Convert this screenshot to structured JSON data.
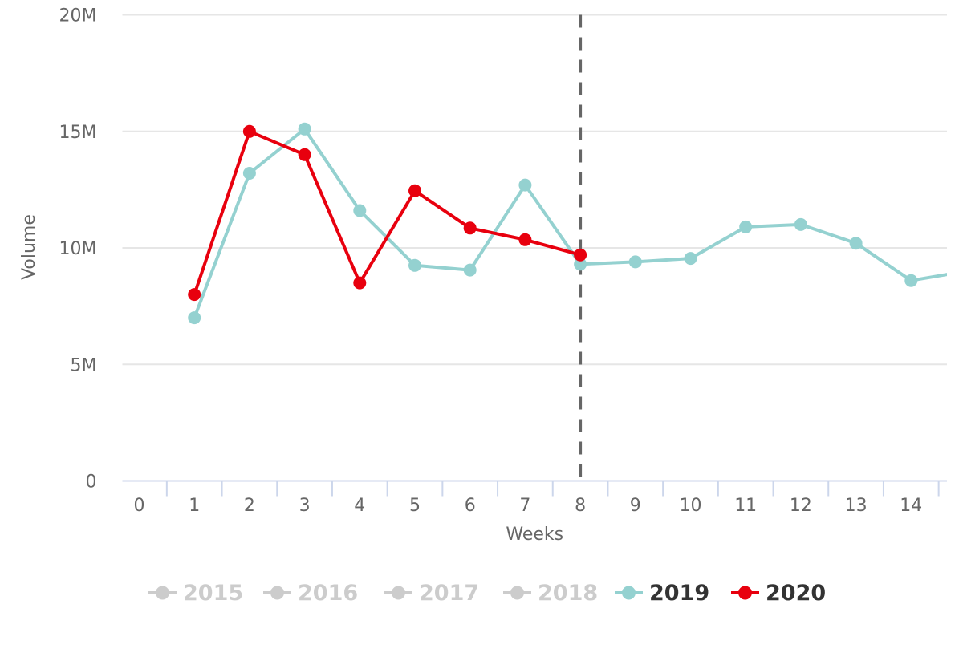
{
  "chart_data": {
    "type": "line",
    "title": "",
    "xlabel": "Weeks",
    "ylabel": "Volume",
    "x_tick_labels": [
      "0",
      "1",
      "2",
      "3",
      "4",
      "5",
      "6",
      "7",
      "8",
      "9",
      "10",
      "11",
      "12",
      "13",
      "14"
    ],
    "y_tick_labels": [
      "0",
      "5M",
      "10M",
      "15M",
      "20M"
    ],
    "y_tick_values": [
      0,
      5000000,
      10000000,
      15000000,
      20000000
    ],
    "ylim": [
      0,
      20000000
    ],
    "xlim": [
      -0.31,
      14.66
    ],
    "grid": "horizontal",
    "legend_position": "bottom",
    "plot_line": {
      "x": 8,
      "style": "dashed",
      "color": "#666666"
    },
    "series": [
      {
        "name": "2015",
        "visible": false,
        "color": "#cccccc",
        "x": [],
        "values": []
      },
      {
        "name": "2016",
        "visible": false,
        "color": "#cccccc",
        "x": [],
        "values": []
      },
      {
        "name": "2017",
        "visible": false,
        "color": "#cccccc",
        "x": [],
        "values": []
      },
      {
        "name": "2018",
        "visible": false,
        "color": "#cccccc",
        "x": [],
        "values": []
      },
      {
        "name": "2019",
        "visible": true,
        "color": "#94d1d0",
        "x": [
          1,
          2,
          3,
          4,
          5,
          6,
          7,
          8,
          9,
          10,
          11,
          12,
          13,
          14,
          15
        ],
        "values": [
          7000000,
          13200000,
          15100000,
          11600000,
          9250000,
          9050000,
          12700000,
          9300000,
          9400000,
          9550000,
          10900000,
          11000000,
          10200000,
          8600000,
          9000000
        ]
      },
      {
        "name": "2020",
        "visible": true,
        "color": "#e8000e",
        "x": [
          1,
          2,
          3,
          4,
          5,
          6,
          7,
          8
        ],
        "values": [
          8000000,
          15000000,
          14000000,
          8500000,
          12450000,
          10850000,
          10350000,
          9700000
        ]
      }
    ],
    "styles": {
      "background": "#ffffff",
      "grid_color": "#e6e6e6",
      "axis_line_color": "#ccd6eb",
      "tick_color": "#ccd6eb",
      "label_color": "#666666",
      "axis_title_color": "#666666",
      "legend_text_color": "#333333",
      "legend_disabled_color": "#cccccc"
    }
  }
}
